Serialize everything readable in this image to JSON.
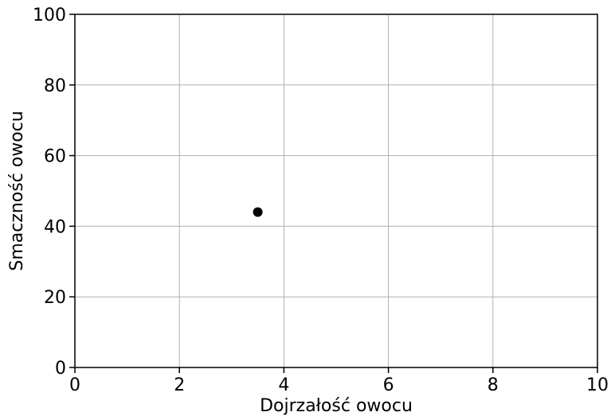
{
  "chart_data": {
    "type": "scatter",
    "title": "",
    "xlabel": "Dojrzałość owocu",
    "ylabel": "Smaczność owocu",
    "xlim": [
      0,
      10
    ],
    "ylim": [
      0,
      100
    ],
    "xticks": [
      0,
      2,
      4,
      6,
      8,
      10
    ],
    "yticks": [
      0,
      20,
      40,
      60,
      80,
      100
    ],
    "grid": true,
    "legend": "none",
    "series": [
      {
        "color": "#000000",
        "points": [
          {
            "x": 3.5,
            "y": 44
          }
        ]
      }
    ]
  }
}
